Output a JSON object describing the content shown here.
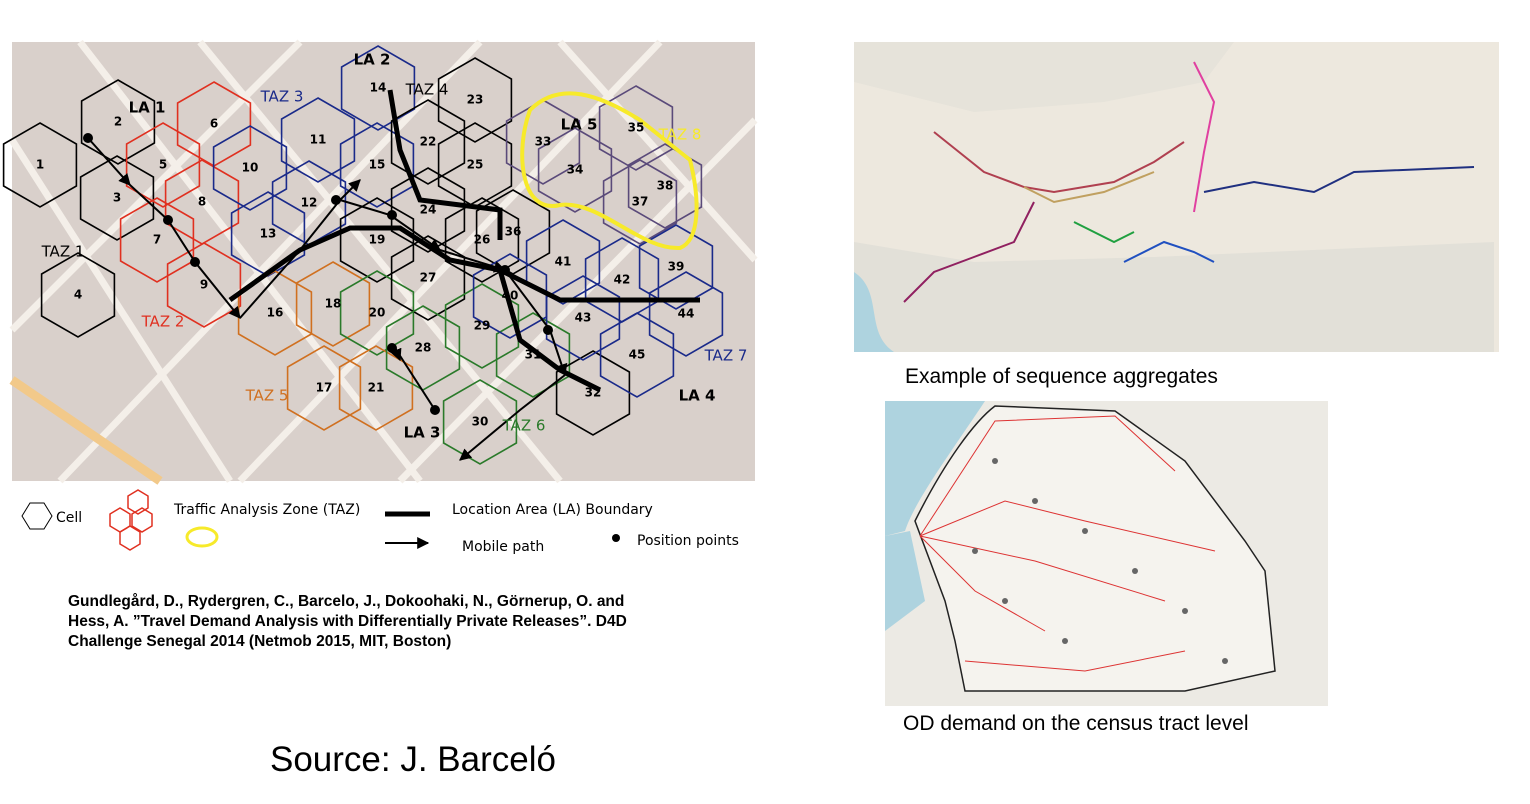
{
  "left_map": {
    "cells": [
      "1",
      "2",
      "3",
      "4",
      "5",
      "6",
      "7",
      "8",
      "9",
      "10",
      "11",
      "12",
      "13",
      "14",
      "15",
      "16",
      "17",
      "18",
      "19",
      "20",
      "21",
      "22",
      "23",
      "24",
      "25",
      "26",
      "27",
      "28",
      "29",
      "30",
      "31",
      "32",
      "33",
      "34",
      "35",
      "36",
      "37",
      "38",
      "39",
      "40",
      "41",
      "42",
      "43",
      "44",
      "45"
    ],
    "location_areas": [
      "LA 1",
      "LA 2",
      "LA 3",
      "LA 4",
      "LA 5"
    ],
    "taz": [
      "TAZ 1",
      "TAZ 2",
      "TAZ 3",
      "TAZ 4",
      "TAZ 5",
      "TAZ 6",
      "TAZ 7",
      "TAZ 8"
    ]
  },
  "legend": {
    "cell": "Cell",
    "taz": "Traffic Analysis Zone (TAZ)",
    "la_boundary": "Location Area (LA) Boundary",
    "mobile_path": "Mobile path",
    "position_points": "Position points"
  },
  "citation": [
    "Gundlegård, D., Rydergren, C., Barcelo, J., Dokoohaki, N., Görnerup, O. and",
    "Hess, A. ”Travel Demand Analysis with Differentially Private Releases”. D4D",
    "Challenge Senegal 2014 (Netmob 2015, MIT, Boston)"
  ],
  "captions": {
    "sequence": "Example of sequence aggregates",
    "od": "OD demand on the census tract  level"
  },
  "source": "Source: J. Barceló"
}
